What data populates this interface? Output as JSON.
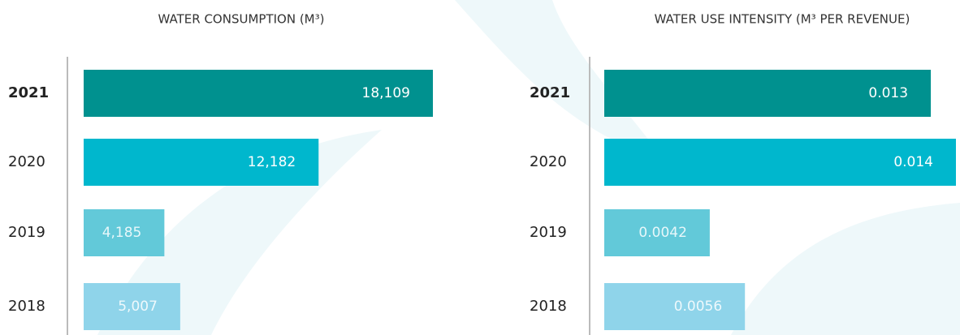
{
  "chart_data": [
    {
      "type": "hbar",
      "title": "WATER CONSUMPTION (M³)",
      "categories": [
        "2021",
        "2020",
        "2019",
        "2018"
      ],
      "values": [
        18109,
        12182,
        4185,
        5007
      ],
      "value_labels": [
        "18,109",
        "12,182",
        "4,185",
        "5,007"
      ],
      "colors": [
        "#00918f",
        "#00b7cd",
        "#62c9d9",
        "#8fd4ea"
      ]
    },
    {
      "type": "hbar",
      "title": "WATER USE INTENSITY (M³ PER REVENUE)",
      "categories": [
        "2021",
        "2020",
        "2019",
        "2018"
      ],
      "values": [
        0.013,
        0.014,
        0.0042,
        0.0056
      ],
      "colors": [
        "#00918f",
        "#00b7cd",
        "#62c9d9",
        "#8fd4ea"
      ]
    }
  ]
}
